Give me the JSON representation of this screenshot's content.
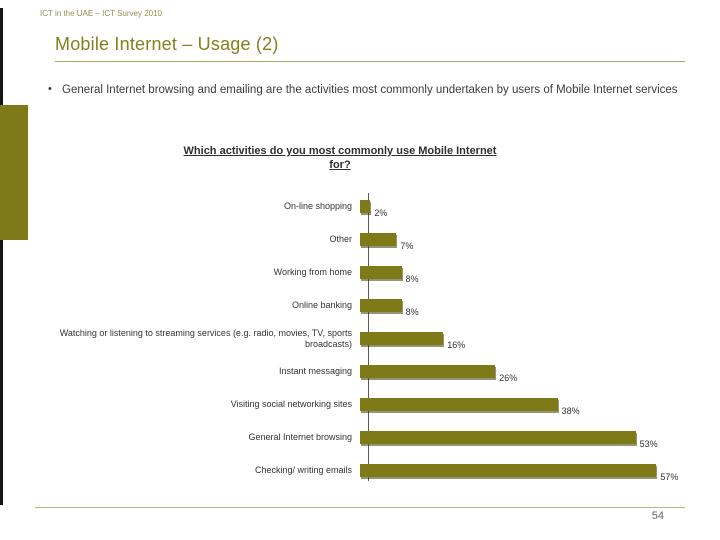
{
  "slide": {
    "header": "ICT in the UAE – ICT Survey 2010",
    "title": "Mobile Internet – Usage (2)",
    "bullet_glyph": "•",
    "bullet": "General Internet browsing and emailing are the activities most commonly undertaken by users of Mobile Internet services",
    "page_number": "54"
  },
  "colors": {
    "accent": "#7e7a17",
    "title": "#857f1c",
    "text": "#3c3c3c"
  },
  "chart_data": {
    "type": "bar",
    "orientation": "horizontal",
    "title": "Which activities do you most commonly use Mobile Internet for?",
    "categories": [
      "On-line shopping",
      "Other",
      "Working from home",
      "Online banking",
      "Watching or listening to streaming services (e.g. radio, movies, TV, sports broadcasts)",
      "Instant messaging",
      "Visiting social networking sites",
      "General Internet browsing",
      "Checking/ writing emails"
    ],
    "values": [
      2,
      7,
      8,
      8,
      16,
      26,
      38,
      53,
      57
    ],
    "value_labels": [
      "2%",
      "7%",
      "8%",
      "8%",
      "16%",
      "26%",
      "38%",
      "53%",
      "57%"
    ],
    "xlim": [
      0,
      60
    ],
    "bar_color": "#7e7a17",
    "grid": false,
    "legend": false
  }
}
